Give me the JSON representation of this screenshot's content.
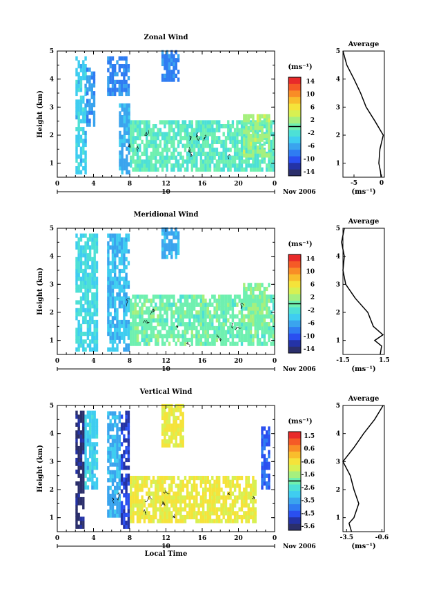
{
  "colors": {
    "scale": [
      "#2b2f6b",
      "#2433a6",
      "#2a4ff0",
      "#2f7cf2",
      "#3aa4ee",
      "#3fcdf0",
      "#4de0d6",
      "#6ff0b0",
      "#a6f07e",
      "#d8f052",
      "#f5e33a",
      "#f9bd2c",
      "#f98d26",
      "#f55a26",
      "#e82a2a"
    ]
  },
  "x_axis": {
    "ticks": [
      "0",
      "4",
      "8",
      "12",
      "16",
      "20",
      "0"
    ],
    "day_label": "10",
    "date_label": "Nov 2006",
    "xlabel": "Local Time"
  },
  "panels": [
    {
      "title": "Zonal Wind",
      "ylabel": "Height (km)",
      "yticks": [
        "1",
        "2",
        "3",
        "4",
        "5"
      ],
      "unit": "(ms⁻¹)",
      "cbar_labels": [
        "14",
        "10",
        "6",
        "2",
        "-2",
        "-6",
        "-10",
        "-14"
      ],
      "avg_title": "Average",
      "avg_xticks": [
        "-5",
        "0"
      ],
      "avg_unit": "(ms⁻¹)"
    },
    {
      "title": "Meridional Wind",
      "ylabel": "Height (km)",
      "yticks": [
        "1",
        "2",
        "3",
        "4",
        "5"
      ],
      "unit": "(ms⁻¹)",
      "cbar_labels": [
        "14",
        "10",
        "6",
        "2",
        "-2",
        "-6",
        "-10",
        "-14"
      ],
      "avg_title": "Average",
      "avg_xticks": [
        "-1.5",
        "1.5"
      ],
      "avg_unit": "(ms⁻¹)"
    },
    {
      "title": "Vertical Wind",
      "ylabel": "Height (km)",
      "yticks": [
        "1",
        "2",
        "3",
        "4",
        "5"
      ],
      "unit": "(ms⁻¹)",
      "cbar_labels": [
        "1.5",
        "0.6",
        "-0.6",
        "-1.6",
        "-2.6",
        "-3.5",
        "-4.5",
        "-5.6"
      ],
      "avg_title": "Average",
      "avg_xticks": [
        "-3.5",
        "-0.6"
      ],
      "avg_unit": "(ms⁻¹)"
    }
  ],
  "chart_data": [
    {
      "type": "heatmap",
      "title": "Zonal Wind",
      "ylabel": "Height (km)",
      "xlabel": "Local Time",
      "x_range": [
        0,
        24
      ],
      "y_range": [
        0.5,
        5
      ],
      "value_range": [
        -16,
        16
      ],
      "regions": [
        {
          "x": [
            2.0,
            3.2
          ],
          "y": [
            0.6,
            4.7
          ],
          "value": -4
        },
        {
          "x": [
            3.2,
            4.2
          ],
          "y": [
            2.3,
            4.3
          ],
          "value": -7
        },
        {
          "x": [
            5.5,
            7.8
          ],
          "y": [
            3.4,
            4.7
          ],
          "value": -8
        },
        {
          "x": [
            6.8,
            8.0
          ],
          "y": [
            0.6,
            3.0
          ],
          "value": -6
        },
        {
          "x": [
            8.0,
            24
          ],
          "y": [
            0.7,
            2.4
          ],
          "value": -1
        },
        {
          "x": [
            11.5,
            13.5
          ],
          "y": [
            3.9,
            4.9
          ],
          "value": -8
        },
        {
          "x": [
            20.5,
            23.5
          ],
          "y": [
            1.2,
            2.7
          ],
          "value": 2
        }
      ],
      "average_profile": {
        "title": "Average",
        "x_range": [
          -7,
          0.5
        ],
        "height": [
          0.5,
          0.7,
          1.0,
          1.5,
          2.0,
          2.5,
          3.0,
          3.5,
          4.0,
          4.5,
          5.0
        ],
        "value": [
          -0.1,
          -0.2,
          -0.5,
          -0.3,
          0.3,
          -1.2,
          -2.8,
          -3.8,
          -5.0,
          -6.3,
          -7.0
        ]
      }
    },
    {
      "type": "heatmap",
      "title": "Meridional Wind",
      "ylabel": "Height (km)",
      "xlabel": "Local Time",
      "x_range": [
        0,
        24
      ],
      "y_range": [
        0.5,
        5
      ],
      "value_range": [
        -16,
        16
      ],
      "regions": [
        {
          "x": [
            2.0,
            4.5
          ],
          "y": [
            0.6,
            4.8
          ],
          "value": -3
        },
        {
          "x": [
            5.5,
            8.0
          ],
          "y": [
            0.6,
            4.7
          ],
          "value": -5
        },
        {
          "x": [
            8.0,
            24
          ],
          "y": [
            0.8,
            2.5
          ],
          "value": 0
        },
        {
          "x": [
            11.5,
            13.5
          ],
          "y": [
            3.9,
            4.9
          ],
          "value": -6
        },
        {
          "x": [
            20.5,
            23.5
          ],
          "y": [
            1.5,
            3.0
          ],
          "value": 1
        }
      ],
      "average_profile": {
        "title": "Average",
        "x_range": [
          -1.5,
          1.5
        ],
        "height": [
          0.5,
          0.8,
          1.0,
          1.2,
          1.5,
          2.0,
          2.5,
          3.0,
          3.5,
          4.0,
          4.5,
          5.0
        ],
        "value": [
          1.2,
          1.3,
          0.8,
          1.4,
          0.7,
          0.3,
          -0.6,
          -1.3,
          -1.5,
          -1.4,
          -1.6,
          -1.4
        ]
      }
    },
    {
      "type": "heatmap",
      "title": "Vertical Wind",
      "ylabel": "Height (km)",
      "xlabel": "Local Time",
      "x_range": [
        0,
        24
      ],
      "y_range": [
        0.5,
        5
      ],
      "value_range": [
        -6,
        2
      ],
      "regions": [
        {
          "x": [
            2.0,
            3.0
          ],
          "y": [
            0.6,
            4.7
          ],
          "value": -5.6
        },
        {
          "x": [
            3.0,
            4.5
          ],
          "y": [
            2.0,
            4.8
          ],
          "value": -3.0
        },
        {
          "x": [
            5.5,
            7.0
          ],
          "y": [
            1.0,
            4.7
          ],
          "value": -3.5
        },
        {
          "x": [
            7.0,
            8.0
          ],
          "y": [
            0.6,
            4.7
          ],
          "value": -5.0
        },
        {
          "x": [
            8.0,
            22.0
          ],
          "y": [
            0.8,
            2.4
          ],
          "value": -0.6
        },
        {
          "x": [
            11.5,
            14.0
          ],
          "y": [
            3.5,
            4.9
          ],
          "value": -0.6
        },
        {
          "x": [
            22.5,
            23.5
          ],
          "y": [
            2.0,
            4.2
          ],
          "value": -4.5
        }
      ],
      "average_profile": {
        "title": "Average",
        "x_range": [
          -3.8,
          -0.4
        ],
        "height": [
          0.5,
          0.8,
          1.0,
          1.5,
          2.0,
          2.5,
          3.0,
          3.5,
          4.0,
          4.5,
          5.0
        ],
        "value": [
          -3.1,
          -3.3,
          -2.9,
          -2.5,
          -2.9,
          -3.2,
          -3.8,
          -2.9,
          -2.1,
          -1.2,
          -0.5
        ]
      }
    }
  ]
}
